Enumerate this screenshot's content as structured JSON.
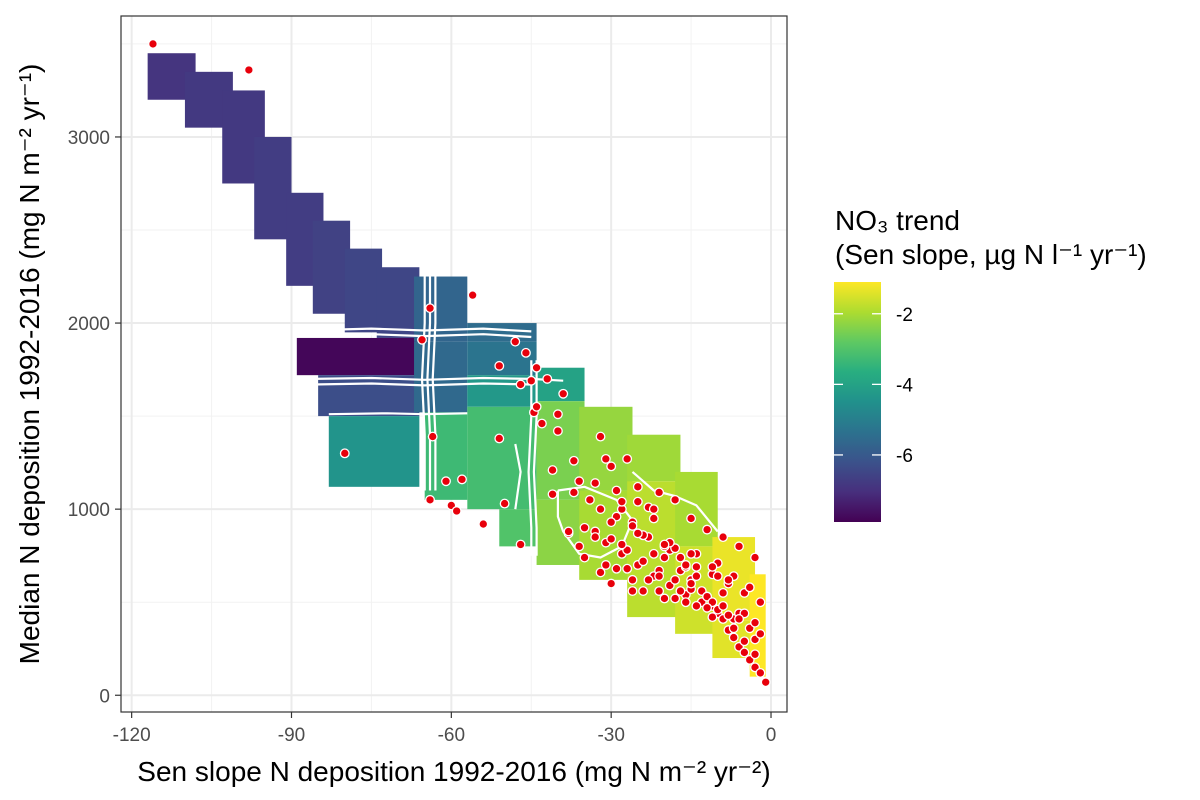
{
  "chart_data": {
    "type": "heatmap",
    "title": "",
    "xlabel": "Sen slope N deposition 1992-2016 (mg N m⁻² yr⁻²)",
    "ylabel": "Median N deposition 1992-2016 (mg N m⁻² yr⁻¹)",
    "xlim": [
      -122,
      3
    ],
    "ylim": [
      -90,
      3650
    ],
    "x_ticks": [
      -120,
      -90,
      -60,
      -30,
      0
    ],
    "x_tick_labels": [
      "-120",
      "-90",
      "-60",
      "-30",
      "0"
    ],
    "y_ticks": [
      0,
      1000,
      2000,
      3000
    ],
    "y_tick_labels": [
      "0",
      "1000",
      "2000",
      "3000"
    ],
    "grid": true,
    "legend": {
      "title_line1": "NO₃ trend",
      "title_line2": "(Sen slope, µg N l⁻¹ yr⁻¹)",
      "placement": "right",
      "range": [
        -7.9,
        -1.1
      ],
      "ticks": [
        -2,
        -4,
        -6
      ],
      "tick_labels": [
        "-2",
        "-4",
        "-6"
      ],
      "colors": [
        "#440154",
        "#472f7d",
        "#3b528b",
        "#2c728e",
        "#21918c",
        "#28ae80",
        "#5ec962",
        "#addc30",
        "#fde725"
      ]
    },
    "surface": [
      {
        "x": [
          -117,
          -108
        ],
        "y": [
          3200,
          3450
        ],
        "value": -6.9
      },
      {
        "x": [
          -110,
          -101
        ],
        "y": [
          3050,
          3350
        ],
        "value": -6.8
      },
      {
        "x": [
          -103,
          -95
        ],
        "y": [
          2750,
          3250
        ],
        "value": -6.8
      },
      {
        "x": [
          -97,
          -90
        ],
        "y": [
          2450,
          3000
        ],
        "value": -6.7
      },
      {
        "x": [
          -91,
          -84
        ],
        "y": [
          2200,
          2700
        ],
        "value": -6.7
      },
      {
        "x": [
          -86,
          -79
        ],
        "y": [
          2050,
          2550
        ],
        "value": -6.6
      },
      {
        "x": [
          -80,
          -73
        ],
        "y": [
          1950,
          2400
        ],
        "value": -6.5
      },
      {
        "x": [
          -74,
          -66
        ],
        "y": [
          1920,
          2300
        ],
        "value": -6.5
      },
      {
        "x": [
          -89,
          -66
        ],
        "y": [
          1720,
          1920
        ],
        "value": -7.8
      },
      {
        "x": [
          -85,
          -66
        ],
        "y": [
          1500,
          1720
        ],
        "value": -6.3
      },
      {
        "x": [
          -83,
          -66
        ],
        "y": [
          1120,
          1500
        ],
        "value": -4.4
      },
      {
        "x": [
          -67,
          -57
        ],
        "y": [
          1900,
          2250
        ],
        "value": -5.7
      },
      {
        "x": [
          -67,
          -57
        ],
        "y": [
          1520,
          1900
        ],
        "value": -5.6
      },
      {
        "x": [
          -65,
          -57
        ],
        "y": [
          1050,
          1520
        ],
        "value": -3.3
      },
      {
        "x": [
          -57,
          -44
        ],
        "y": [
          1900,
          2000
        ],
        "value": -5.5
      },
      {
        "x": [
          -57,
          -44
        ],
        "y": [
          1720,
          1900
        ],
        "value": -5.3
      },
      {
        "x": [
          -57,
          -44
        ],
        "y": [
          1550,
          1720
        ],
        "value": -4.3
      },
      {
        "x": [
          -57,
          -44
        ],
        "y": [
          1000,
          1550
        ],
        "value": -3.2
      },
      {
        "x": [
          -51,
          -44
        ],
        "y": [
          800,
          1000
        ],
        "value": -3.0
      },
      {
        "x": [
          -44,
          -35
        ],
        "y": [
          1580,
          1760
        ],
        "value": -4.0
      },
      {
        "x": [
          -44,
          -35
        ],
        "y": [
          1050,
          1580
        ],
        "value": -2.5
      },
      {
        "x": [
          -44,
          -35
        ],
        "y": [
          700,
          1050
        ],
        "value": -2.3
      },
      {
        "x": [
          -36,
          -26
        ],
        "y": [
          1100,
          1550
        ],
        "value": -2.2
      },
      {
        "x": [
          -36,
          -26
        ],
        "y": [
          620,
          1100
        ],
        "value": -2.0
      },
      {
        "x": [
          -27,
          -17
        ],
        "y": [
          1150,
          1400
        ],
        "value": -2.1
      },
      {
        "x": [
          -27,
          -17
        ],
        "y": [
          420,
          1150
        ],
        "value": -1.8
      },
      {
        "x": [
          -18,
          -10
        ],
        "y": [
          800,
          1200
        ],
        "value": -2.0
      },
      {
        "x": [
          -18,
          -10
        ],
        "y": [
          330,
          800
        ],
        "value": -1.6
      },
      {
        "x": [
          -11,
          -3
        ],
        "y": [
          400,
          850
        ],
        "value": -1.3
      },
      {
        "x": [
          -11,
          -3
        ],
        "y": [
          200,
          400
        ],
        "value": -1.4
      },
      {
        "x": [
          -4,
          -1
        ],
        "y": [
          100,
          650
        ],
        "value": -1.1
      }
    ],
    "contours": [
      [
        [
          -88,
          1960
        ],
        [
          -75,
          1970
        ],
        [
          -65,
          1960
        ],
        [
          -54,
          1970
        ],
        [
          -45,
          1955
        ]
      ],
      [
        [
          -88,
          1930
        ],
        [
          -75,
          1940
        ],
        [
          -65,
          1930
        ],
        [
          -54,
          1940
        ],
        [
          -45,
          1925
        ]
      ],
      [
        [
          -86,
          1700
        ],
        [
          -75,
          1705
        ],
        [
          -65,
          1695
        ],
        [
          -54,
          1705
        ],
        [
          -45,
          1700
        ],
        [
          -39,
          1690
        ]
      ],
      [
        [
          -86,
          1670
        ],
        [
          -75,
          1675
        ],
        [
          -65,
          1665
        ],
        [
          -54,
          1675
        ],
        [
          -45,
          1670
        ]
      ],
      [
        [
          -83,
          1510
        ],
        [
          -72,
          1515
        ],
        [
          -65,
          1510
        ],
        [
          -57,
          1515
        ]
      ],
      [
        [
          -65,
          2400
        ],
        [
          -65,
          2200
        ],
        [
          -65,
          2000
        ],
        [
          -65.5,
          1700
        ],
        [
          -65,
          1400
        ],
        [
          -65,
          1100
        ]
      ],
      [
        [
          -64,
          2400
        ],
        [
          -64,
          2200
        ],
        [
          -64,
          2000
        ],
        [
          -64.5,
          1700
        ],
        [
          -64,
          1400
        ],
        [
          -64,
          1100
        ]
      ],
      [
        [
          -63,
          2400
        ],
        [
          -63,
          2200
        ],
        [
          -63,
          2000
        ],
        [
          -63.5,
          1700
        ],
        [
          -63,
          1400
        ],
        [
          -63,
          1100
        ]
      ],
      [
        [
          -45,
          1800
        ],
        [
          -45,
          1500
        ],
        [
          -45.5,
          1200
        ],
        [
          -45,
          900
        ],
        [
          -45,
          750
        ]
      ],
      [
        [
          -44,
          1800
        ],
        [
          -44,
          1500
        ],
        [
          -44.5,
          1200
        ],
        [
          -44,
          900
        ],
        [
          -44,
          750
        ]
      ],
      [
        [
          -48,
          1350
        ],
        [
          -47,
          1200
        ],
        [
          -48,
          1000
        ]
      ],
      [
        [
          -40,
          1100
        ],
        [
          -40,
          960
        ],
        [
          -39,
          880
        ],
        [
          -36,
          760
        ],
        [
          -32,
          740
        ],
        [
          -28,
          800
        ],
        [
          -26,
          940
        ],
        [
          -29,
          1050
        ],
        [
          -35,
          1120
        ],
        [
          -40,
          1100
        ]
      ],
      [
        [
          -26,
          1200
        ],
        [
          -22,
          1100
        ],
        [
          -18,
          1070
        ],
        [
          -14,
          1020
        ],
        [
          -10,
          880
        ]
      ]
    ],
    "points": {
      "x": [
        -116,
        -98,
        -80,
        -64,
        -64,
        -65.5,
        -63.5,
        -61,
        -60,
        -59,
        -58,
        -56,
        -54,
        -51,
        -51,
        -50,
        -48,
        -47,
        -47,
        -46,
        -45,
        -44.5,
        -44,
        -43,
        -41,
        -40,
        -41,
        -38,
        -37,
        -37,
        -36,
        -35,
        -34,
        -33,
        -32,
        -31,
        -30,
        -29,
        -28,
        -27,
        -26,
        -25,
        -24,
        -23,
        -22,
        -21,
        -20,
        -19,
        -18,
        -17,
        -16,
        -15,
        -14,
        -13,
        -12,
        -11,
        -10,
        -9,
        -8,
        -7,
        -6,
        -5,
        -4,
        -3,
        -2,
        -1,
        -31,
        -28,
        -25,
        -22,
        -19,
        -16,
        -13,
        -10,
        -7,
        -4,
        -33,
        -30,
        -27,
        -24,
        -21,
        -18,
        -15,
        -12,
        -9,
        -6,
        -3,
        -29,
        -26,
        -23,
        -20,
        -17,
        -14,
        -11,
        -8,
        -5,
        -2,
        -32,
        -26,
        -20,
        -14,
        -8,
        -35,
        -29,
        -23,
        -17,
        -11,
        -5,
        -38,
        -33,
        -28,
        -22,
        -16,
        -10,
        -4,
        -30,
        -24,
        -18,
        -12,
        -6,
        -27,
        -21,
        -15,
        -9,
        -3,
        -44,
        -42,
        -40,
        -39,
        -32,
        -28,
        -25,
        -22,
        -18,
        -15,
        -12,
        -9,
        -6,
        -3,
        -24,
        -19,
        -14,
        -10,
        -7,
        -4,
        -2,
        -36,
        -31,
        -26,
        -21,
        -16,
        -11,
        -7,
        -3,
        -30,
        -25,
        -20,
        -15,
        -11,
        -8,
        -5
      ],
      "y": [
        3500,
        3360,
        1300,
        2080,
        1050,
        1910,
        1390,
        1150,
        1020,
        990,
        1160,
        2150,
        920,
        1770,
        1380,
        1030,
        1900,
        1670,
        810,
        1840,
        1690,
        1520,
        1550,
        1460,
        1210,
        1420,
        1080,
        870,
        1260,
        1090,
        1150,
        900,
        1050,
        1140,
        1390,
        1270,
        1230,
        1100,
        1000,
        1270,
        930,
        1040,
        860,
        1010,
        950,
        1090,
        740,
        780,
        790,
        670,
        690,
        620,
        640,
        560,
        530,
        480,
        440,
        410,
        350,
        310,
        260,
        230,
        190,
        150,
        120,
        70,
        820,
        760,
        700,
        640,
        590,
        540,
        500,
        460,
        410,
        360,
        880,
        840,
        780,
        720,
        670,
        620,
        570,
        530,
        480,
        440,
        390,
        960,
        910,
        850,
        800,
        740,
        690,
        650,
        600,
        550,
        500,
        660,
        560,
        520,
        480,
        430,
        740,
        680,
        620,
        560,
        500,
        440,
        880,
        850,
        810,
        760,
        700,
        640,
        580,
        600,
        560,
        520,
        470,
        410,
        680,
        640,
        600,
        550,
        300,
        1760,
        1700,
        1510,
        1620,
        1000,
        1040,
        1120,
        1000,
        1050,
        950,
        890,
        850,
        800,
        740,
        860,
        820,
        760,
        710,
        640,
        580,
        330,
        800,
        700,
        620,
        560,
        500,
        420,
        360,
        220,
        930,
        870,
        810,
        760,
        690,
        620,
        290
      ]
    }
  }
}
